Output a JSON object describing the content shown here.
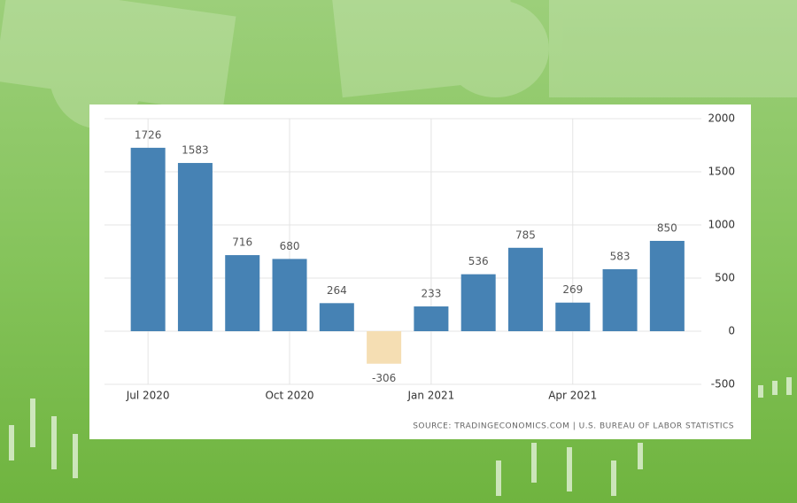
{
  "chart_data": {
    "type": "bar",
    "categories": [
      "Jul 2020",
      null,
      null,
      "Oct 2020",
      null,
      null,
      "Jan 2021",
      null,
      null,
      "Apr 2021",
      null,
      null
    ],
    "values": [
      1726,
      1583,
      716,
      680,
      264,
      -306,
      233,
      536,
      785,
      269,
      583,
      850
    ],
    "color": "#4682b4",
    "negative_color": "#f5deb3",
    "ylim": [
      -500,
      2000
    ],
    "yticks": [
      -500,
      0,
      500,
      1000,
      1500,
      2000
    ],
    "grid": true,
    "y_axis_side": "right",
    "source": "SOURCE: TRADINGECONOMICS.COM | U.S. BUREAU OF LABOR STATISTICS"
  }
}
